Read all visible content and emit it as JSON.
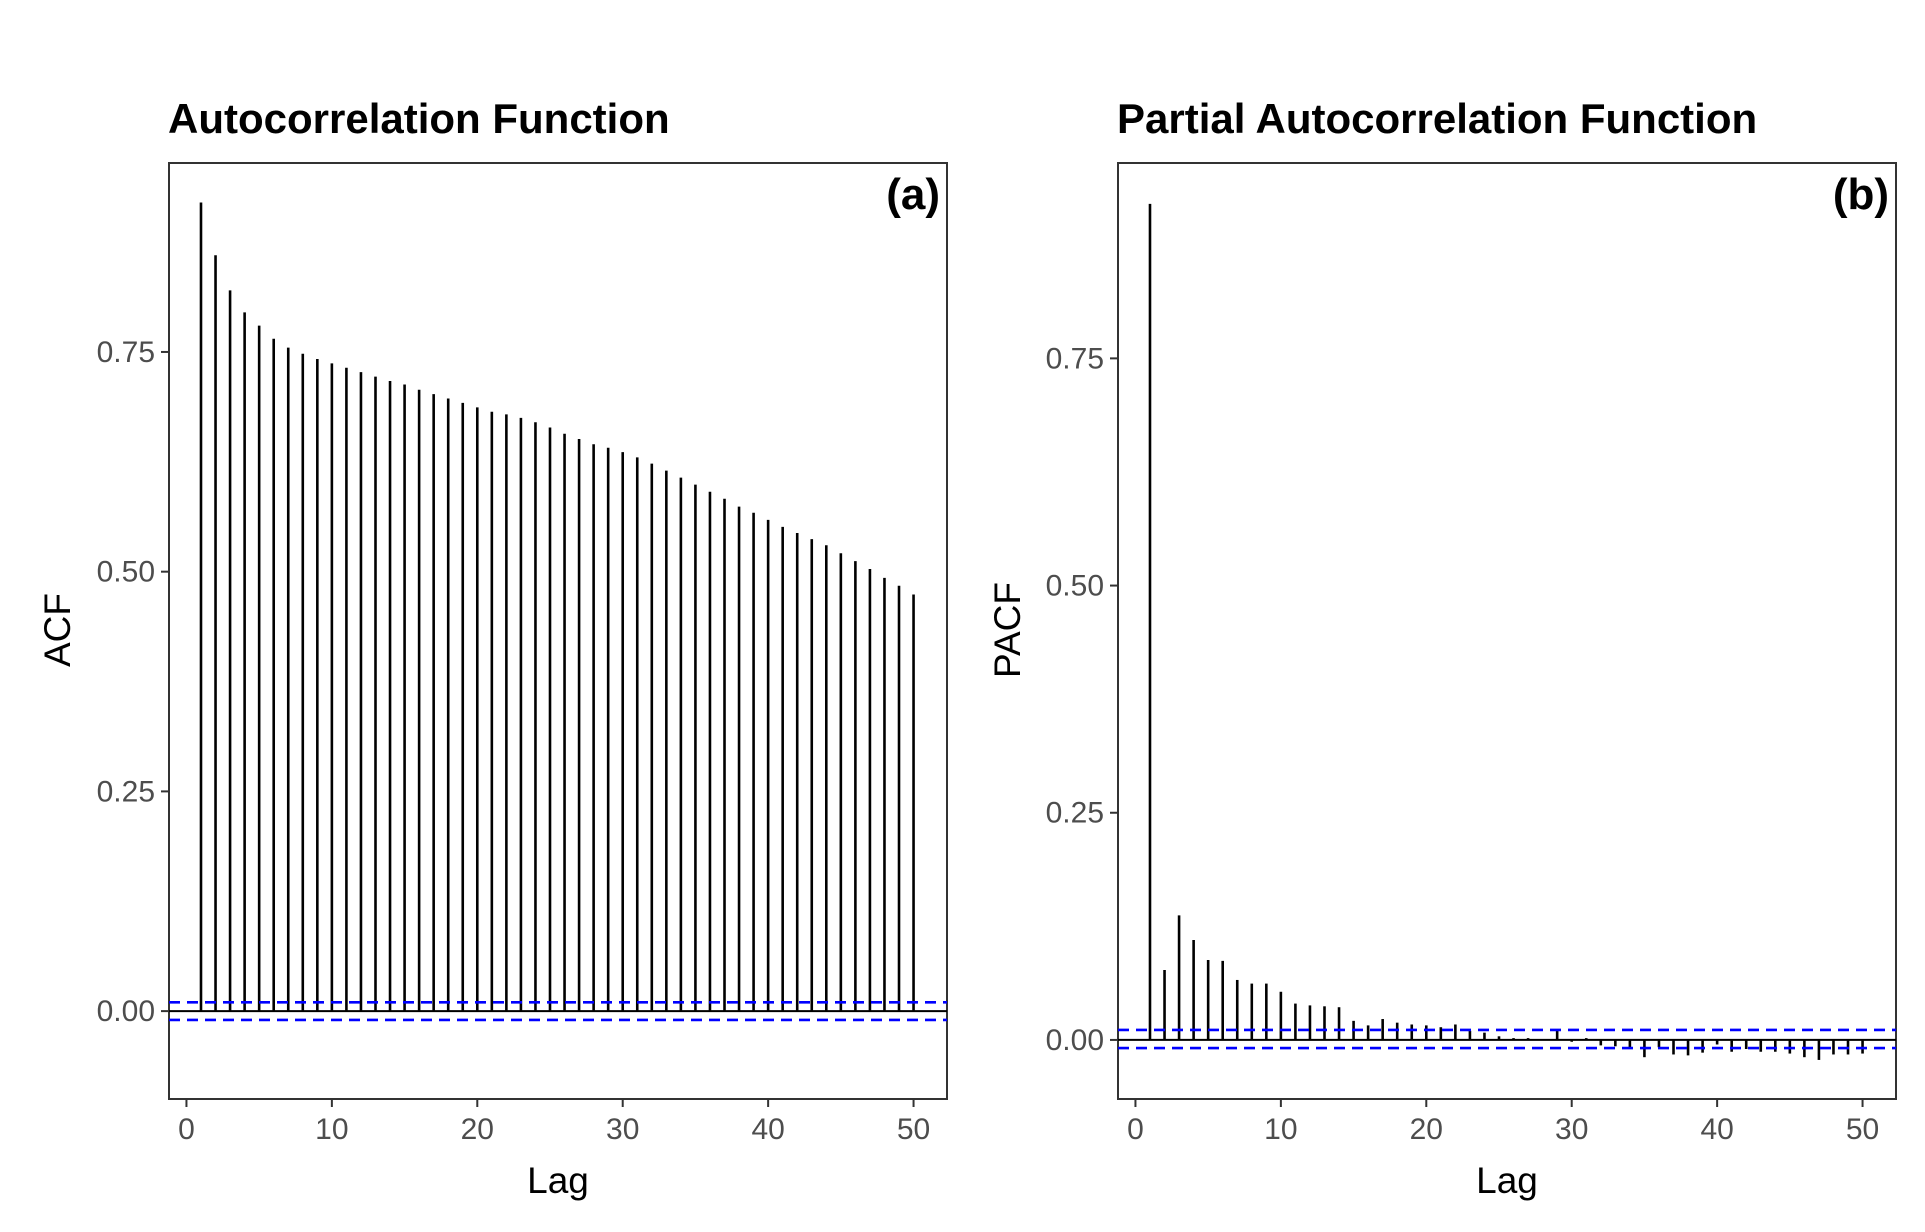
{
  "chart_data": [
    {
      "type": "bar",
      "title": "Autocorrelation Function",
      "panel_tag": "(a)",
      "xlabel": "Lag",
      "ylabel": "ACF",
      "xlim": [
        -1.2,
        52.3
      ],
      "ylim": [
        -0.1,
        0.965
      ],
      "xticks": [
        0,
        10,
        20,
        30,
        40,
        50
      ],
      "xtick_labels": [
        "0",
        "10",
        "20",
        "30",
        "40",
        "50"
      ],
      "yticks": [
        0,
        0.25,
        0.5,
        0.75
      ],
      "ytick_labels": [
        "0.00",
        "0.25",
        "0.50",
        "0.75"
      ],
      "confidence_bounds": [
        0.01,
        -0.01
      ],
      "bound_color": "#0000ff",
      "bar_color": "#000000",
      "grid": false,
      "x": [
        1,
        2,
        3,
        4,
        5,
        6,
        7,
        8,
        9,
        10,
        11,
        12,
        13,
        14,
        15,
        16,
        17,
        18,
        19,
        20,
        21,
        22,
        23,
        24,
        25,
        26,
        27,
        28,
        29,
        30,
        31,
        32,
        33,
        34,
        35,
        36,
        37,
        38,
        39,
        40,
        41,
        42,
        43,
        44,
        45,
        46,
        47,
        48,
        49,
        50
      ],
      "values": [
        0.92,
        0.86,
        0.82,
        0.795,
        0.78,
        0.765,
        0.755,
        0.748,
        0.742,
        0.737,
        0.732,
        0.727,
        0.722,
        0.717,
        0.713,
        0.707,
        0.702,
        0.697,
        0.692,
        0.687,
        0.682,
        0.679,
        0.675,
        0.67,
        0.664,
        0.657,
        0.651,
        0.645,
        0.641,
        0.636,
        0.63,
        0.623,
        0.615,
        0.607,
        0.599,
        0.591,
        0.583,
        0.574,
        0.567,
        0.559,
        0.551,
        0.544,
        0.537,
        0.53,
        0.521,
        0.512,
        0.503,
        0.493,
        0.484,
        0.474
      ]
    },
    {
      "type": "bar",
      "title": "Partial Autocorrelation Function",
      "panel_tag": "(b)",
      "xlabel": "Lag",
      "ylabel": "PACF",
      "xlim": [
        -1.2,
        52.3
      ],
      "ylim": [
        -0.065,
        0.965
      ],
      "xticks": [
        0,
        10,
        20,
        30,
        40,
        50
      ],
      "xtick_labels": [
        "0",
        "10",
        "20",
        "30",
        "40",
        "50"
      ],
      "yticks": [
        0,
        0.25,
        0.5,
        0.75
      ],
      "ytick_labels": [
        "0.00",
        "0.25",
        "0.50",
        "0.75"
      ],
      "confidence_bounds": [
        0.011,
        -0.009
      ],
      "bound_color": "#0000ff",
      "bar_color": "#000000",
      "grid": false,
      "x": [
        1,
        2,
        3,
        4,
        5,
        6,
        7,
        8,
        9,
        10,
        11,
        12,
        13,
        14,
        15,
        16,
        17,
        18,
        19,
        20,
        21,
        22,
        23,
        24,
        25,
        26,
        27,
        28,
        29,
        30,
        31,
        32,
        33,
        34,
        35,
        36,
        37,
        38,
        39,
        40,
        41,
        42,
        43,
        44,
        45,
        46,
        47,
        48,
        49,
        50
      ],
      "values": [
        0.92,
        0.077,
        0.137,
        0.11,
        0.088,
        0.087,
        0.066,
        0.062,
        0.062,
        0.053,
        0.04,
        0.038,
        0.037,
        0.036,
        0.021,
        0.016,
        0.023,
        0.019,
        0.017,
        0.016,
        0.014,
        0.017,
        0.01,
        0.008,
        0.004,
        0.002,
        0.002,
        0.001,
        0.01,
        -0.002,
        0.002,
        -0.006,
        -0.007,
        -0.01,
        -0.019,
        -0.008,
        -0.016,
        -0.017,
        -0.014,
        -0.005,
        -0.013,
        -0.01,
        -0.013,
        -0.013,
        -0.015,
        -0.019,
        -0.022,
        -0.016,
        -0.016,
        -0.015
      ]
    }
  ]
}
